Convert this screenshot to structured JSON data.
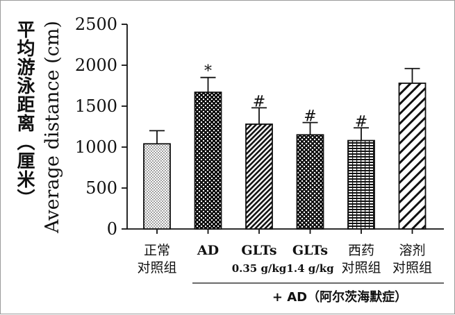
{
  "chart_data": {
    "type": "bar",
    "ylabel_cn": "平均游泳距离（厘米）",
    "ylabel_en": "Average distance (cm)",
    "ylim": [
      0,
      2500
    ],
    "yticks": [
      0,
      500,
      1000,
      1500,
      2000,
      2500
    ],
    "categories": [
      {
        "line1": "正常",
        "line2": "对照组",
        "bold": false,
        "latin": false
      },
      {
        "line1": "AD",
        "line2": "",
        "bold": true,
        "latin": true
      },
      {
        "line1": "GLTs",
        "line2": "0.35 g/kg",
        "bold": true,
        "latin": true
      },
      {
        "line1": "GLTs",
        "line2": "1.4 g/kg",
        "bold": true,
        "latin": true
      },
      {
        "line1": "西药",
        "line2": "对照组",
        "bold": false,
        "latin": false
      },
      {
        "line1": "溶剂",
        "line2": "对照组",
        "bold": false,
        "latin": false
      }
    ],
    "values": [
      1040,
      1670,
      1280,
      1150,
      1080,
      1780
    ],
    "errors": [
      160,
      180,
      200,
      150,
      155,
      180
    ],
    "annotations": [
      "",
      "*",
      "#",
      "#",
      "#",
      ""
    ],
    "patterns": [
      "dots",
      "checker",
      "diagonal-down",
      "hearts",
      "horizontal-lines",
      "diagonal-up"
    ],
    "group_label": "+ AD（阿尔茨海默症）"
  }
}
